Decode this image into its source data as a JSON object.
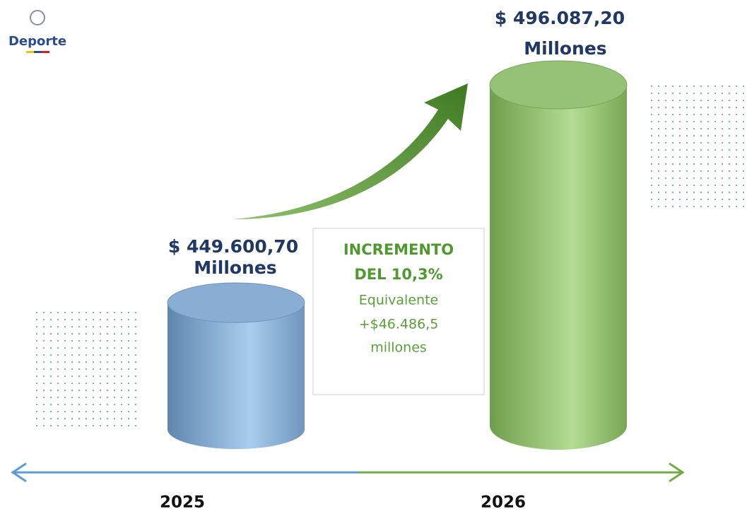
{
  "logo": {
    "label": "Deporte"
  },
  "bars": [
    {
      "value_label": "$ 449.600,70",
      "unit_label": "Millones",
      "year": "2025"
    },
    {
      "value_label": "$ 496.087,20",
      "unit_label": "Millones",
      "year": "2026"
    }
  ],
  "callout": {
    "title_lines": [
      "INCREMENTO",
      "DEL 10,3%"
    ],
    "lines": [
      "Equivalente",
      "+$46.486,5",
      "millones"
    ]
  }
}
